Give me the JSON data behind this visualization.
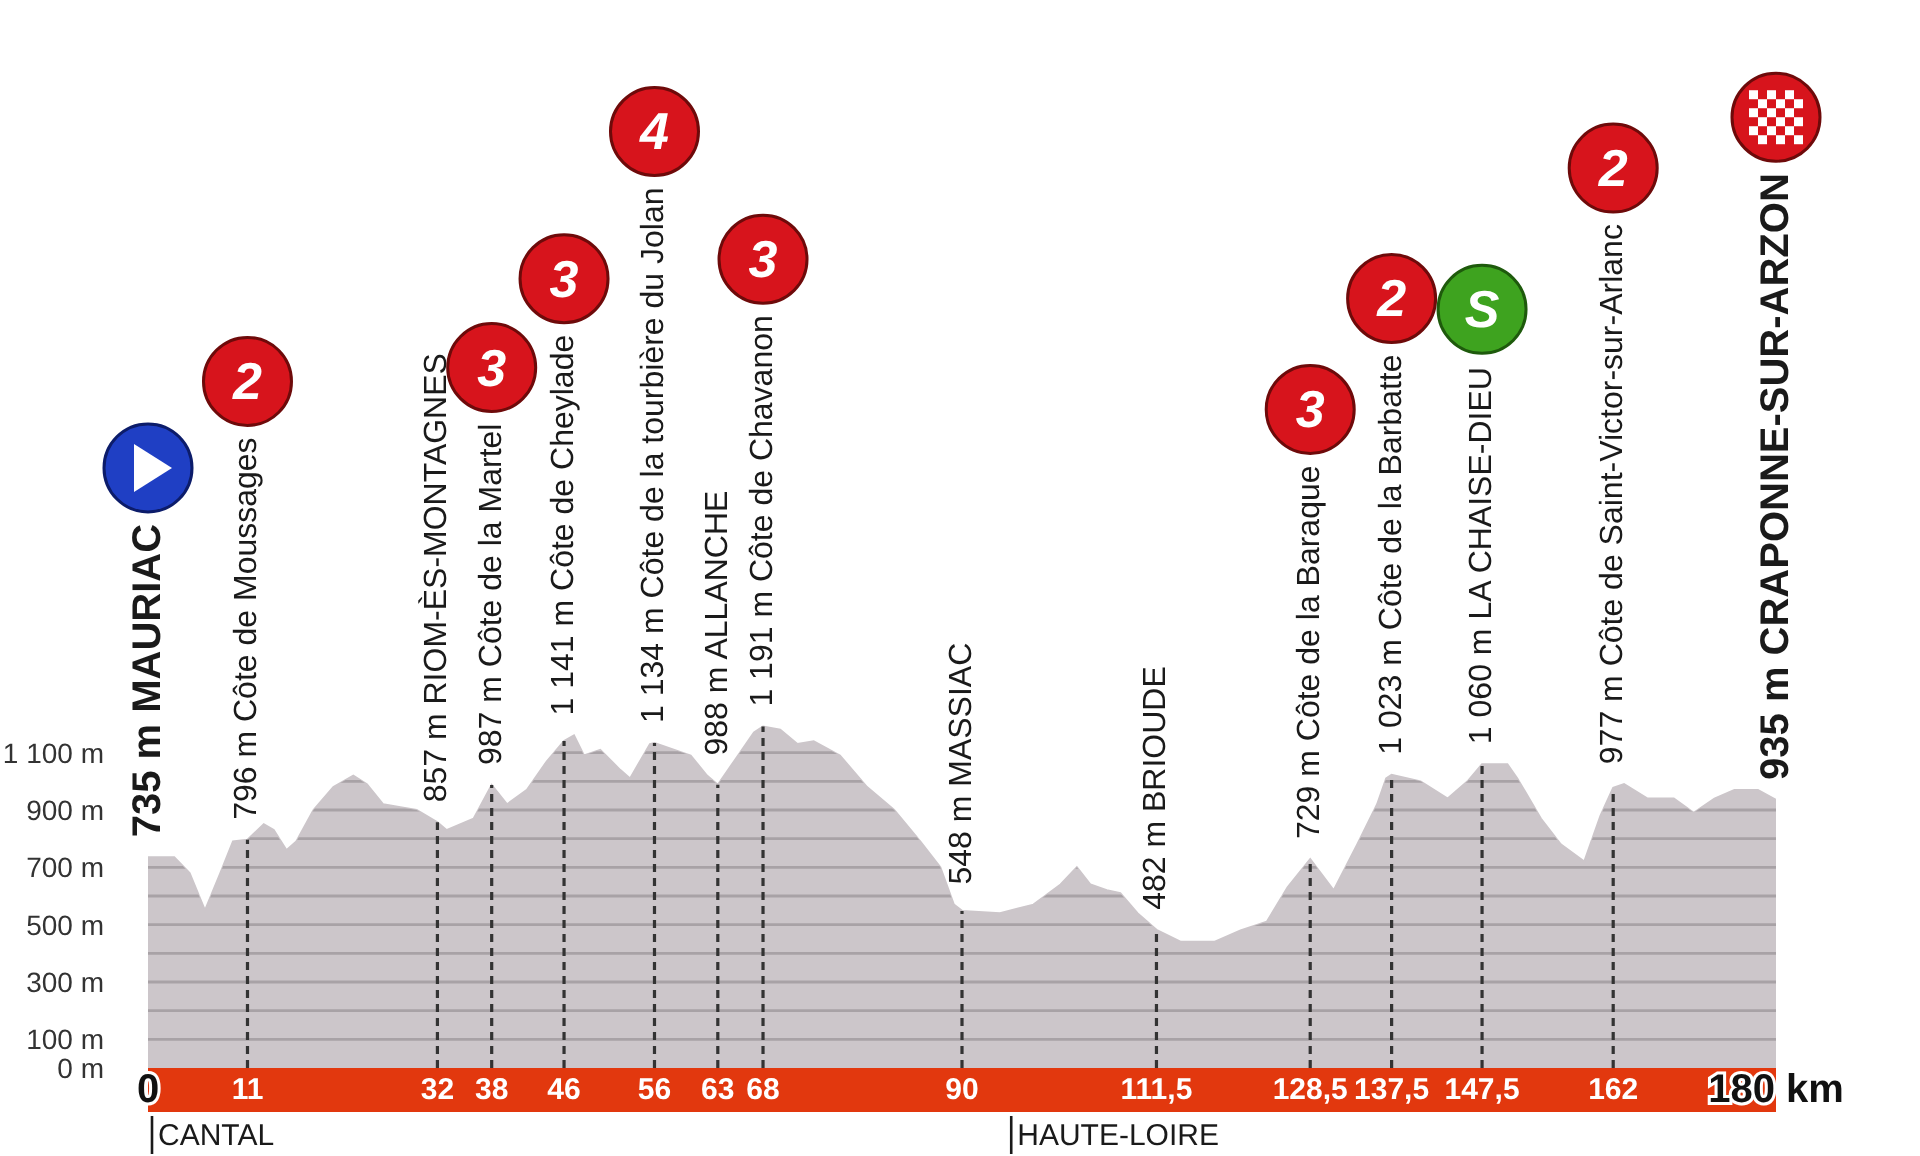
{
  "chart_data": {
    "type": "area",
    "x": [
      0,
      2.9,
      4.6,
      6.3,
      8.0,
      9.4,
      11,
      12.8,
      13.9,
      15.3,
      16.4,
      18.3,
      20.5,
      22.7,
      24.2,
      26.0,
      27.9,
      29.7,
      32,
      33.0,
      34.5,
      36.0,
      38,
      39.7,
      41.9,
      44.1,
      46,
      47.1,
      48.2,
      50.0,
      52.2,
      53.3,
      55.5,
      56,
      60.0,
      61.8,
      63,
      64.8,
      67.0,
      68,
      69.9,
      71.8,
      73.6,
      76.5,
      79.5,
      82.5,
      85.4,
      87.6,
      89.1,
      90,
      94.2,
      97.9,
      100.9,
      102.7,
      104.2,
      106.0,
      107.5,
      109.4,
      111.5,
      114.2,
      117.9,
      120.8,
      123.7,
      126.0,
      128.5,
      131.1,
      133.7,
      135.9,
      136.9,
      137.5,
      140.7,
      143.7,
      145.9,
      147.5,
      150.3,
      151.4,
      154.0,
      156.2,
      158.8,
      160.6,
      162,
      163.2,
      165.8,
      168.7,
      170.9,
      173.2,
      175.4,
      178.0,
      180
    ],
    "values": [
      735,
      735,
      680,
      550,
      680,
      790,
      796,
      850,
      830,
      760,
      790,
      900,
      980,
      1020,
      990,
      920,
      910,
      900,
      857,
      830,
      850,
      870,
      987,
      920,
      970,
      1070,
      1141,
      1160,
      1090,
      1110,
      1040,
      1010,
      1130,
      1134,
      1090,
      1020,
      988,
      1070,
      1170,
      1191,
      1180,
      1130,
      1140,
      1090,
      980,
      900,
      790,
      700,
      570,
      548,
      540,
      570,
      640,
      700,
      640,
      620,
      610,
      540,
      482,
      440,
      440,
      480,
      510,
      630,
      729,
      620,
      780,
      920,
      1010,
      1023,
      1000,
      940,
      1000,
      1060,
      1060,
      1010,
      870,
      780,
      720,
      880,
      977,
      990,
      940,
      940,
      890,
      940,
      970,
      970,
      935
    ],
    "color": "#ccc6ca",
    "xlim": [
      0,
      180
    ],
    "xticks": [
      0,
      11,
      32,
      38,
      46,
      56,
      63,
      68,
      90,
      {
        "value": 111.5,
        "label": "111,5"
      },
      {
        "value": 128.5,
        "label": "128,5"
      },
      {
        "value": 137.5,
        "label": "137,5"
      },
      {
        "value": 147.5,
        "label": "147,5"
      },
      162,
      {
        "value": 180,
        "label": "180 km"
      }
    ],
    "ylim": [
      0,
      1200
    ],
    "yticks": [
      {
        "value": 0,
        "label": "0 m"
      },
      {
        "value": 100,
        "label": "100 m"
      },
      {
        "value": 200,
        "label": null
      },
      {
        "value": 300,
        "label": "300 m"
      },
      {
        "value": 400,
        "label": null
      },
      {
        "value": 500,
        "label": "500 m"
      },
      {
        "value": 600,
        "label": null
      },
      {
        "value": 700,
        "label": "700 m"
      },
      {
        "value": 800,
        "label": null
      },
      {
        "value": 900,
        "label": "900 m"
      },
      {
        "value": 1000,
        "label": null
      },
      {
        "value": 1100,
        "label": "1 100 m"
      }
    ],
    "grid": "y",
    "ref_lines": [
      {
        "axis": "x",
        "value": 11,
        "label": "796 m Côte de Moussages",
        "color": "#333333",
        "line_style": "dashed"
      },
      {
        "axis": "x",
        "value": 38,
        "label": "987 m Côte de la Martel",
        "color": "#333333",
        "line_style": "dashed"
      },
      {
        "axis": "x",
        "value": 46,
        "label": "1 141 m Côte de Cheylade",
        "color": "#333333",
        "line_style": "dashed"
      },
      {
        "axis": "x",
        "value": 56,
        "label": "1 134 m Côte de la tourbière du Jolan",
        "color": "#333333",
        "line_style": "dashed"
      },
      {
        "axis": "x",
        "value": 68,
        "label": "1 191 m Côte de Chavanon",
        "color": "#333333",
        "line_style": "dashed"
      },
      {
        "axis": "x",
        "value": 128.5,
        "label": "729 m Côte de la Baraque",
        "color": "#333333",
        "line_style": "dashed"
      },
      {
        "axis": "x",
        "value": 137.5,
        "label": "1 023 m Côte de la Barbatte",
        "color": "#333333",
        "line_style": "dashed"
      },
      {
        "axis": "x",
        "value": 147.5,
        "label": "1 060 m LA CHAISE-DIEU",
        "color": "#333333",
        "line_style": "dashed"
      },
      {
        "axis": "x",
        "value": 162,
        "label": "977 m Côte de Saint-Victor-sur-Arlanc",
        "color": "#333333",
        "line_style": "dashed"
      },
      {
        "axis": "x",
        "value": 32,
        "label": "857 m RIOM-ÈS-MONTAGNES",
        "color": "#333333",
        "line_style": "dashed"
      },
      {
        "axis": "x",
        "value": 63,
        "label": "988 m ALLANCHE",
        "color": "#333333",
        "line_style": "dashed"
      },
      {
        "axis": "x",
        "value": 90,
        "label": "548 m MASSIAC",
        "color": "#333333",
        "line_style": "dashed"
      },
      {
        "axis": "x",
        "value": 111.5,
        "label": "482 m BRIOUDE",
        "color": "#333333",
        "line_style": "dashed"
      },
      {
        "axis": "x",
        "value": 0,
        "label": "CANTAL",
        "color": "#1a1a1a",
        "line_style": "solid"
      },
      {
        "axis": "x",
        "value": 95,
        "label": "HAUTE-LOIRE",
        "color": "#1a1a1a",
        "line_style": "solid"
      }
    ],
    "annotations": [
      {
        "text": "735 m MAURIAC",
        "x": 0,
        "y": 735
      },
      "2",
      "3",
      "3",
      "4",
      "3",
      "3",
      "2",
      "S",
      "2",
      {
        "text": "935 m CRAPONNE-SUR-ARZON",
        "x": 180,
        "y": 935
      }
    ]
  }
}
